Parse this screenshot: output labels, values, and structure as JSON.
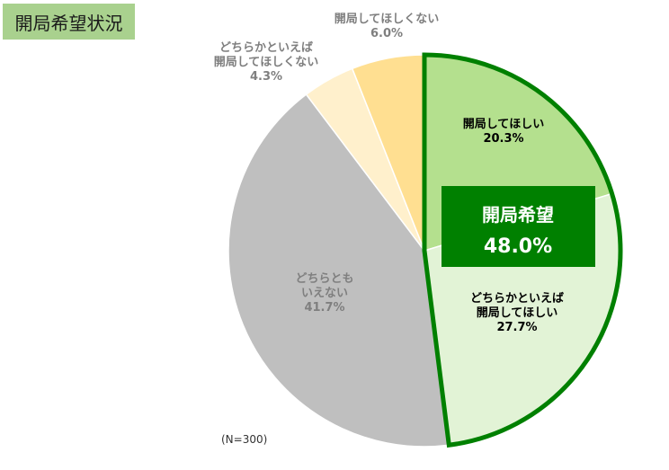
{
  "title": "開局希望状況",
  "note": "(N=300)",
  "chart_data": {
    "type": "pie",
    "slices": [
      {
        "label": [
          "開局してほしい"
        ],
        "value": 20.3,
        "value_text": "20.3%",
        "color": "#b4e08e",
        "label_color": "#000000"
      },
      {
        "label": [
          "どちらかといえば",
          "開局してほしい"
        ],
        "value": 27.7,
        "value_text": "27.7%",
        "color": "#e2f3d6",
        "label_color": "#000000"
      },
      {
        "label": [
          "どちらとも",
          "いえない"
        ],
        "value": 41.7,
        "value_text": "41.7%",
        "color": "#bfbfbf",
        "label_color": "#7f7f7f"
      },
      {
        "label": [
          "どちらかといえば",
          "開局してほしくない"
        ],
        "value": 4.3,
        "value_text": "4.3%",
        "color": "#fff0cc",
        "label_color": "#7f7f7f"
      },
      {
        "label": [
          "開局してほしくない"
        ],
        "value": 6.0,
        "value_text": "6.0%",
        "color": "#ffdf91",
        "label_color": "#7f7f7f"
      }
    ],
    "highlight": {
      "label": "開局希望",
      "value_text": "48.0%",
      "border_color": "#008000",
      "box_color": "#008000"
    }
  }
}
